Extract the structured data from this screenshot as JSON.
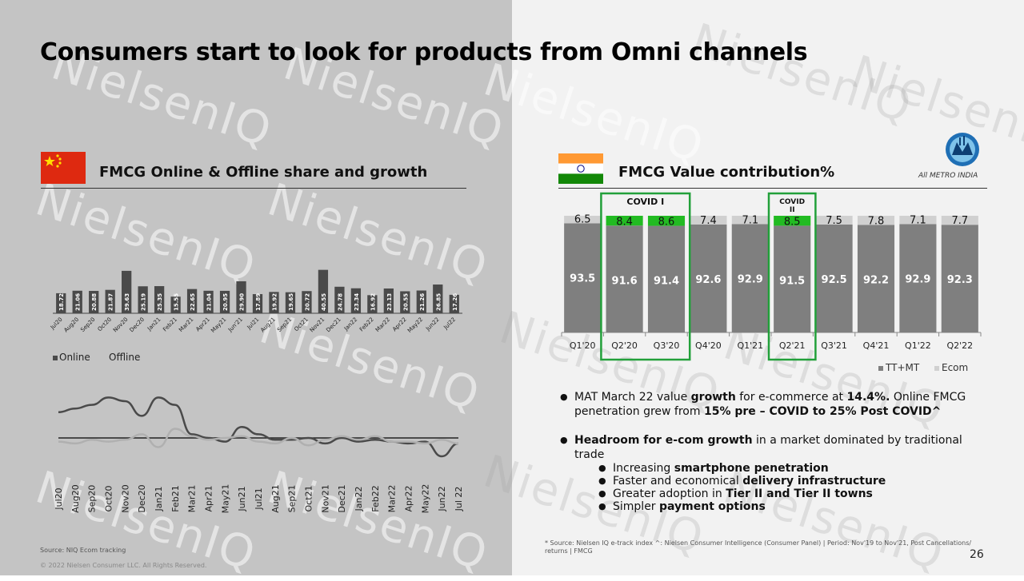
{
  "title": "Consumers start to look for products from Omni channels",
  "left": {
    "section_title": "FMCG Online & Offline share and growth",
    "legend": [
      "Online",
      "Offline"
    ],
    "source": "Source: NIQ Ecom tracking",
    "copyright": "© 2022 Nielsen Consumer LLC. All Rights Reserved."
  },
  "right": {
    "section_title": "FMCG Value contribution%",
    "brand": "All METRO INDIA",
    "legend": [
      "TT+MT",
      "Ecom"
    ],
    "covid_labels": [
      "COVID I",
      "COVID II"
    ],
    "bullets": [
      {
        "parts": [
          {
            "t": "MAT March 22 value ",
            "b": false
          },
          {
            "t": "growth",
            "b": true
          },
          {
            "t": " for e-commerce at ",
            "b": false
          },
          {
            "t": "14.4%.",
            "b": true
          },
          {
            "t": " Online FMCG penetration grew from ",
            "b": false
          },
          {
            "t": "15% pre – COVID to 25% Post COVID^",
            "b": true
          }
        ]
      },
      {
        "parts": [
          {
            "t": "Headroom for e-com growth",
            "b": true
          },
          {
            "t": " in a market dominated by traditional trade",
            "b": false
          }
        ]
      }
    ],
    "sub_bullets": [
      [
        {
          "t": "Increasing ",
          "b": false
        },
        {
          "t": "smartphone penetration",
          "b": true
        }
      ],
      [
        {
          "t": "Faster and economical ",
          "b": false
        },
        {
          "t": "delivery infrastructure",
          "b": true
        }
      ],
      [
        {
          "t": "Greater adoption in ",
          "b": false
        },
        {
          "t": "Tier II and Tier II towns",
          "b": true
        }
      ],
      [
        {
          "t": "Simpler ",
          "b": false
        },
        {
          "t": "payment options",
          "b": true
        }
      ]
    ],
    "source": "* Source: Nielsen IQ e-track index ^: Nielsen Consumer Intelligence (Consumer Panel) | Period: Nov'19 to Nov'21, Post Cancellations/ returns | FMCG",
    "page_number": "26"
  },
  "watermark": "NielsenIQ",
  "chart_data": [
    {
      "type": "bar",
      "categories": [
        "Jul20",
        "Aug20",
        "Sep20",
        "Oct20",
        "Nov20",
        "Dec20",
        "Jan21",
        "Feb21",
        "Mar21",
        "Apr21",
        "May21",
        "Jun'21",
        "Jul21",
        "Aug21",
        "Sep21",
        "Oct21",
        "Nov21",
        "Dec21",
        "Jan22",
        "Feb22",
        "Mar22",
        "Apr22",
        "May22",
        "Jun22",
        "Jul22"
      ],
      "values": [
        18.72,
        21.06,
        20.88,
        21.87,
        39.63,
        25.19,
        25.35,
        15.55,
        22.65,
        21.04,
        20.95,
        29.9,
        17.89,
        19.92,
        19.65,
        20.72,
        40.55,
        24.78,
        23.34,
        16.92,
        23.13,
        20.55,
        21.26,
        26.85,
        17.26
      ],
      "labels": [
        "18.72",
        "21.06",
        "20.88",
        "21.87",
        "39.63",
        "25.19",
        "25.35",
        "15.55",
        "22.65",
        "21.04",
        "20.95",
        "29.90",
        "17.89",
        "19.92",
        "19.65",
        "20.72",
        "40.55",
        "24.78",
        "23.34",
        "16.92",
        "23.13",
        "20.55",
        "21.26",
        "26.85",
        "17.26"
      ]
    },
    {
      "type": "line",
      "x": [
        "Jul20",
        "Aug20",
        "Sep20",
        "Oct20",
        "Nov20",
        "Dec20",
        "Jan21",
        "Feb21",
        "Mar21",
        "Apr21",
        "May21",
        "Jun21",
        "Jul21",
        "Aug21",
        "Sep21",
        "Oct21",
        "Nov21",
        "Dec21",
        "Jan22",
        "Feb22",
        "Mar22",
        "Apr22",
        "May22",
        "Jun22",
        "Jul 22"
      ],
      "series": [
        {
          "name": "Online",
          "values": [
            14,
            16,
            18,
            22,
            20,
            12,
            22,
            18,
            2,
            0,
            -2,
            6,
            2,
            -1,
            -1,
            0,
            -3,
            0,
            -2,
            -1,
            -2,
            -3,
            -2,
            -10,
            -3
          ]
        },
        {
          "name": "Offline",
          "values": [
            -2,
            -3,
            -1,
            -2,
            -1,
            2,
            -5,
            5,
            1,
            -1,
            0,
            1,
            -2,
            -3,
            0,
            -4,
            -1,
            1,
            -1,
            1,
            -2,
            -2,
            -3,
            -1,
            -3
          ]
        }
      ],
      "ylim": [
        -15,
        30
      ]
    },
    {
      "type": "bar",
      "stacked": true,
      "categories": [
        "Q1'20",
        "Q2'20",
        "Q3'20",
        "Q4'20",
        "Q1'21",
        "Q2'21",
        "Q3'21",
        "Q4'21",
        "Q1'22",
        "Q2'22"
      ],
      "series": [
        {
          "name": "TT+MT",
          "values": [
            93.5,
            91.6,
            91.4,
            92.6,
            92.9,
            91.5,
            92.5,
            92.2,
            92.9,
            92.3
          ]
        },
        {
          "name": "Ecom",
          "values": [
            6.5,
            8.4,
            8.6,
            7.4,
            7.1,
            8.5,
            7.5,
            7.8,
            7.1,
            7.7
          ]
        }
      ],
      "ylim": [
        0,
        100
      ],
      "colors": {
        "TT+MT": "#7f7f7f",
        "Ecom": "#d0d0d0",
        "highlight": "#22bb22"
      }
    }
  ]
}
